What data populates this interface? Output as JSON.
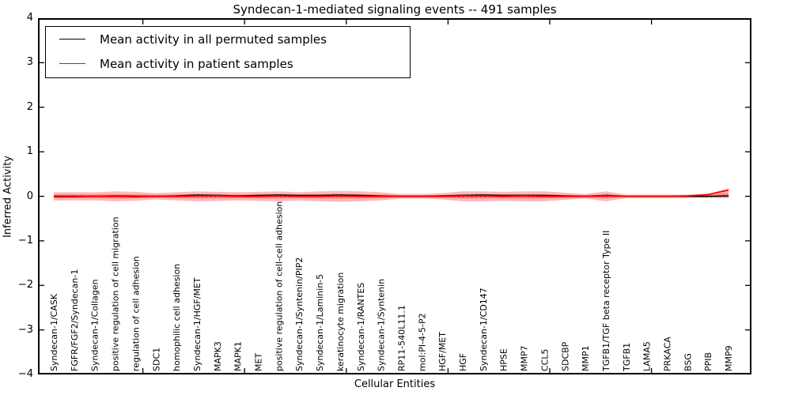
{
  "figure": {
    "title": "Syndecan-1-mediated signaling events -- 491 samples",
    "xlabel": "Cellular Entities",
    "ylabel": "Inferred Activity"
  },
  "legend": {
    "items": [
      {
        "label": "Mean activity in all permuted samples",
        "color": "#000000"
      },
      {
        "label": "Mean activity in patient samples",
        "color": "#ff0000"
      }
    ]
  },
  "chart_data": {
    "type": "line",
    "title": "Syndecan-1-mediated signaling events -- 491 samples",
    "xlabel": "Cellular Entities",
    "ylabel": "Inferred Activity",
    "ylim": [
      -4,
      4
    ],
    "yticks": [
      4,
      3,
      2,
      1,
      0,
      -1,
      -2,
      -3,
      -4
    ],
    "grid": false,
    "legend_position": "upper left",
    "categories": [
      "Syndecan-1/CASK",
      "FGFR/FGF2/Syndecan-1",
      "Syndecan-1/Collagen",
      "positive regulation of cell migration",
      "regulation of cell adhesion",
      "SDC1",
      "homophilic cell adhesion",
      "Syndecan-1/HGF/MET",
      "MAPK3",
      "MAPK1",
      "MET",
      "positive regulation of cell-cell adhesion",
      "Syndecan-1/Syntenin/PIP2",
      "Syndecan-1/Laminin-5",
      "keratinocyte migration",
      "Syndecan-1/RANTES",
      "Syndecan-1/Syntenin",
      "RP11-540L11.1",
      "mol:PI-4-5-P2",
      "HGF/MET",
      "HGF",
      "Syndecan-1/CD147",
      "HPSE",
      "MMP7",
      "CCL5",
      "SDCBP",
      "MMP1",
      "TGFB1/TGF beta receptor Type II",
      "TGFB1",
      "LAMA5",
      "PRKACA",
      "BSG",
      "PPIB",
      "MMP9"
    ],
    "series": [
      {
        "name": "Mean activity in all permuted samples",
        "color": "#000000",
        "values": [
          0,
          0,
          0,
          0.01,
          0,
          0,
          0.01,
          0.03,
          0.02,
          0.01,
          0.02,
          0.03,
          0.02,
          0.02,
          0.03,
          0.02,
          0.01,
          0,
          0,
          0.01,
          0.02,
          0.03,
          0.02,
          0.02,
          0.02,
          0.01,
          0,
          0.02,
          0,
          0,
          0,
          0,
          0,
          0.01
        ]
      },
      {
        "name": "Mean activity in patient samples",
        "color": "#ff0000",
        "values": [
          -0.01,
          -0.01,
          0,
          0,
          -0.01,
          0,
          0,
          0.01,
          0.01,
          0,
          0,
          0.01,
          0,
          0,
          0.01,
          0,
          0,
          0,
          0,
          0,
          0.01,
          0.01,
          0,
          0.01,
          0,
          0,
          0,
          0.01,
          0,
          0,
          0,
          0.01,
          0.04,
          0.14
        ]
      }
    ],
    "band": {
      "name": "patient sample activity spread",
      "color": "#ff0000",
      "opacity": 0.28,
      "upper": [
        0.09,
        0.09,
        0.09,
        0.11,
        0.1,
        0.07,
        0.09,
        0.11,
        0.1,
        0.09,
        0.1,
        0.11,
        0.09,
        0.11,
        0.12,
        0.11,
        0.09,
        0.05,
        0.05,
        0.07,
        0.11,
        0.11,
        0.1,
        0.11,
        0.11,
        0.08,
        0.05,
        0.11,
        0.04,
        0.04,
        0.04,
        0.04,
        0.05,
        0.18
      ],
      "lower": [
        -0.09,
        -0.09,
        -0.09,
        -0.11,
        -0.1,
        -0.07,
        -0.09,
        -0.11,
        -0.1,
        -0.09,
        -0.1,
        -0.11,
        -0.09,
        -0.11,
        -0.12,
        -0.11,
        -0.09,
        -0.05,
        -0.05,
        -0.07,
        -0.11,
        -0.11,
        -0.1,
        -0.11,
        -0.11,
        -0.08,
        -0.05,
        -0.11,
        -0.04,
        -0.04,
        -0.04,
        -0.04,
        -0.04,
        -0.04
      ]
    },
    "zero_line": {
      "y": 0,
      "style": "dotted",
      "color": "#000000"
    }
  }
}
